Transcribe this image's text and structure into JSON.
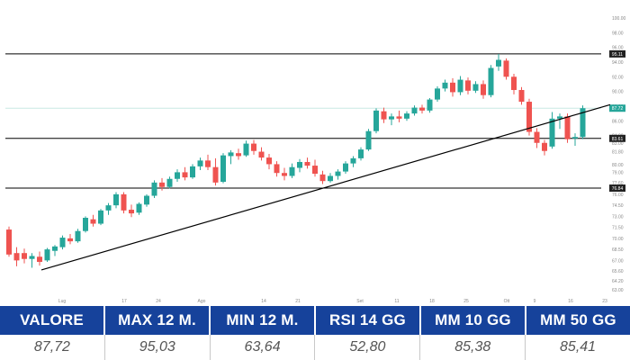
{
  "chart_data": {
    "type": "candlestick",
    "x_tick_labels": [
      "Lug",
      "17",
      "24",
      "Ago",
      "14",
      "21",
      "Set",
      "11",
      "18",
      "25",
      "Ott",
      "9",
      "16",
      "23"
    ],
    "y_tick_labels": [
      "63.00",
      "64.20",
      "65.60",
      "67.00",
      "68.50",
      "70.00",
      "71.50",
      "73.00",
      "74.50",
      "76.00",
      "77.60",
      "79.00",
      "80.00",
      "81.80",
      "83.00",
      "84.00",
      "86.00",
      "88.00",
      "90.00",
      "92.00",
      "94.00",
      "96.00",
      "98.00",
      "100.00"
    ],
    "ylim": [
      63,
      100
    ],
    "horizontal_levels": [
      {
        "label": "95.11",
        "value": 95.11
      },
      {
        "label": "87.72",
        "value": 87.72
      },
      {
        "label": "83.61",
        "value": 83.61
      },
      {
        "label": "76.84",
        "value": 76.84
      }
    ],
    "trendline": {
      "from": [
        0,
        65.7
      ],
      "to": [
        82,
        88.2
      ]
    },
    "candles": [
      {
        "t": 0,
        "o": 71.2,
        "h": 71.6,
        "l": 67.5,
        "c": 67.8
      },
      {
        "t": 1,
        "o": 68.0,
        "h": 68.8,
        "l": 66.2,
        "c": 67.0
      },
      {
        "t": 2,
        "o": 68.0,
        "h": 68.6,
        "l": 66.6,
        "c": 67.2
      },
      {
        "t": 3,
        "o": 67.2,
        "h": 68.0,
        "l": 66.0,
        "c": 67.6
      },
      {
        "t": 4,
        "o": 67.5,
        "h": 68.2,
        "l": 66.3,
        "c": 66.8
      },
      {
        "t": 5,
        "o": 67.0,
        "h": 68.7,
        "l": 66.8,
        "c": 68.5
      },
      {
        "t": 6,
        "o": 68.3,
        "h": 69.1,
        "l": 67.6,
        "c": 68.9
      },
      {
        "t": 7,
        "o": 68.8,
        "h": 70.4,
        "l": 68.5,
        "c": 70.1
      },
      {
        "t": 8,
        "o": 70.0,
        "h": 70.6,
        "l": 69.2,
        "c": 69.6
      },
      {
        "t": 9,
        "o": 69.6,
        "h": 71.3,
        "l": 69.4,
        "c": 71.0
      },
      {
        "t": 10,
        "o": 71.0,
        "h": 73.0,
        "l": 70.8,
        "c": 72.8
      },
      {
        "t": 11,
        "o": 72.6,
        "h": 73.2,
        "l": 71.6,
        "c": 72.0
      },
      {
        "t": 12,
        "o": 72.0,
        "h": 74.0,
        "l": 71.8,
        "c": 73.8
      },
      {
        "t": 13,
        "o": 73.8,
        "h": 74.8,
        "l": 73.2,
        "c": 74.5
      },
      {
        "t": 14,
        "o": 74.5,
        "h": 76.3,
        "l": 74.1,
        "c": 76.0
      },
      {
        "t": 15,
        "o": 76.0,
        "h": 76.3,
        "l": 73.4,
        "c": 73.8
      },
      {
        "t": 16,
        "o": 73.9,
        "h": 74.6,
        "l": 72.9,
        "c": 73.4
      },
      {
        "t": 17,
        "o": 73.5,
        "h": 74.9,
        "l": 73.2,
        "c": 74.7
      },
      {
        "t": 18,
        "o": 74.6,
        "h": 76.0,
        "l": 74.3,
        "c": 75.8
      },
      {
        "t": 19,
        "o": 75.8,
        "h": 77.9,
        "l": 75.5,
        "c": 77.6
      },
      {
        "t": 20,
        "o": 77.6,
        "h": 78.2,
        "l": 76.5,
        "c": 77.0
      },
      {
        "t": 21,
        "o": 77.0,
        "h": 78.4,
        "l": 76.8,
        "c": 78.1
      },
      {
        "t": 22,
        "o": 78.1,
        "h": 79.4,
        "l": 77.7,
        "c": 79.0
      },
      {
        "t": 23,
        "o": 79.0,
        "h": 79.7,
        "l": 77.9,
        "c": 78.3
      },
      {
        "t": 24,
        "o": 78.3,
        "h": 80.1,
        "l": 78.1,
        "c": 79.8
      },
      {
        "t": 25,
        "o": 79.8,
        "h": 81.0,
        "l": 79.3,
        "c": 80.6
      },
      {
        "t": 26,
        "o": 80.6,
        "h": 81.4,
        "l": 79.3,
        "c": 79.7
      },
      {
        "t": 27,
        "o": 79.7,
        "h": 80.9,
        "l": 77.2,
        "c": 77.6
      },
      {
        "t": 28,
        "o": 77.7,
        "h": 81.6,
        "l": 77.5,
        "c": 81.3
      },
      {
        "t": 29,
        "o": 81.2,
        "h": 82.0,
        "l": 80.1,
        "c": 81.7
      },
      {
        "t": 30,
        "o": 81.6,
        "h": 82.2,
        "l": 80.7,
        "c": 81.2
      },
      {
        "t": 31,
        "o": 81.3,
        "h": 83.3,
        "l": 81.1,
        "c": 82.9
      },
      {
        "t": 32,
        "o": 82.9,
        "h": 83.4,
        "l": 81.4,
        "c": 81.9
      },
      {
        "t": 33,
        "o": 81.8,
        "h": 82.4,
        "l": 80.6,
        "c": 81.0
      },
      {
        "t": 34,
        "o": 81.0,
        "h": 81.5,
        "l": 79.4,
        "c": 80.1
      },
      {
        "t": 35,
        "o": 80.1,
        "h": 80.5,
        "l": 78.4,
        "c": 78.9
      },
      {
        "t": 36,
        "o": 78.9,
        "h": 79.6,
        "l": 77.9,
        "c": 78.5
      },
      {
        "t": 37,
        "o": 78.5,
        "h": 80.2,
        "l": 78.2,
        "c": 79.7
      },
      {
        "t": 38,
        "o": 79.6,
        "h": 80.8,
        "l": 79.0,
        "c": 80.4
      },
      {
        "t": 39,
        "o": 80.4,
        "h": 81.0,
        "l": 79.5,
        "c": 79.9
      },
      {
        "t": 40,
        "o": 79.9,
        "h": 80.7,
        "l": 78.4,
        "c": 78.8
      },
      {
        "t": 41,
        "o": 78.7,
        "h": 79.2,
        "l": 77.4,
        "c": 77.8
      },
      {
        "t": 42,
        "o": 77.8,
        "h": 78.9,
        "l": 77.6,
        "c": 78.5
      },
      {
        "t": 43,
        "o": 78.5,
        "h": 79.4,
        "l": 78.0,
        "c": 79.1
      },
      {
        "t": 44,
        "o": 79.1,
        "h": 80.5,
        "l": 78.8,
        "c": 80.2
      },
      {
        "t": 45,
        "o": 80.2,
        "h": 81.2,
        "l": 79.7,
        "c": 80.9
      },
      {
        "t": 46,
        "o": 80.9,
        "h": 82.4,
        "l": 80.6,
        "c": 82.1
      },
      {
        "t": 47,
        "o": 82.1,
        "h": 84.9,
        "l": 81.9,
        "c": 84.6
      },
      {
        "t": 48,
        "o": 84.6,
        "h": 87.7,
        "l": 84.3,
        "c": 87.4
      },
      {
        "t": 49,
        "o": 87.3,
        "h": 87.8,
        "l": 85.7,
        "c": 86.2
      },
      {
        "t": 50,
        "o": 86.2,
        "h": 87.0,
        "l": 85.4,
        "c": 86.6
      },
      {
        "t": 51,
        "o": 86.6,
        "h": 87.4,
        "l": 85.8,
        "c": 86.3
      },
      {
        "t": 52,
        "o": 86.3,
        "h": 87.3,
        "l": 86.0,
        "c": 87.0
      },
      {
        "t": 53,
        "o": 87.0,
        "h": 88.1,
        "l": 86.7,
        "c": 87.8
      },
      {
        "t": 54,
        "o": 87.8,
        "h": 88.2,
        "l": 87.0,
        "c": 87.4
      },
      {
        "t": 55,
        "o": 87.4,
        "h": 89.1,
        "l": 87.1,
        "c": 88.9
      },
      {
        "t": 56,
        "o": 88.9,
        "h": 90.7,
        "l": 88.6,
        "c": 90.4
      },
      {
        "t": 57,
        "o": 90.4,
        "h": 91.6,
        "l": 90.0,
        "c": 91.2
      },
      {
        "t": 58,
        "o": 91.2,
        "h": 91.8,
        "l": 89.3,
        "c": 89.9
      },
      {
        "t": 59,
        "o": 89.9,
        "h": 92.1,
        "l": 89.5,
        "c": 91.6
      },
      {
        "t": 60,
        "o": 91.5,
        "h": 91.9,
        "l": 89.6,
        "c": 90.1
      },
      {
        "t": 61,
        "o": 90.1,
        "h": 91.4,
        "l": 89.8,
        "c": 91.0
      },
      {
        "t": 62,
        "o": 91.0,
        "h": 91.5,
        "l": 89.0,
        "c": 89.5
      },
      {
        "t": 63,
        "o": 89.5,
        "h": 93.6,
        "l": 89.2,
        "c": 93.2
      },
      {
        "t": 64,
        "o": 93.4,
        "h": 95.1,
        "l": 92.8,
        "c": 94.3
      },
      {
        "t": 65,
        "o": 94.2,
        "h": 94.5,
        "l": 91.6,
        "c": 92.0
      },
      {
        "t": 66,
        "o": 92.0,
        "h": 92.4,
        "l": 89.6,
        "c": 90.2
      },
      {
        "t": 67,
        "o": 90.2,
        "h": 90.6,
        "l": 88.2,
        "c": 88.6
      },
      {
        "t": 68,
        "o": 88.6,
        "h": 89.0,
        "l": 84.0,
        "c": 84.5
      },
      {
        "t": 69,
        "o": 84.5,
        "h": 85.0,
        "l": 82.3,
        "c": 83.0
      },
      {
        "t": 70,
        "o": 83.0,
        "h": 83.4,
        "l": 81.3,
        "c": 81.9
      },
      {
        "t": 71,
        "o": 82.5,
        "h": 87.2,
        "l": 82.2,
        "c": 86.3
      },
      {
        "t": 72,
        "o": 86.3,
        "h": 87.0,
        "l": 84.9,
        "c": 86.6
      },
      {
        "t": 73,
        "o": 86.6,
        "h": 87.0,
        "l": 83.0,
        "c": 83.5
      },
      {
        "t": 74,
        "o": 83.6,
        "h": 84.3,
        "l": 82.6,
        "c": 83.8
      },
      {
        "t": 75,
        "o": 83.8,
        "h": 88.1,
        "l": 83.5,
        "c": 87.72
      }
    ]
  },
  "stats_table": {
    "headers": [
      "VALORE",
      "MAX 12 M.",
      "MIN 12 M.",
      "RSI 14 GG",
      "MM 10 GG",
      "MM 50 GG"
    ],
    "values": [
      "87,72",
      "95,03",
      "63,64",
      "52,80",
      "85,38",
      "85,41"
    ]
  },
  "colors": {
    "up": "#26a69a",
    "down": "#ef5350",
    "header_bg": "#16429b",
    "header_text": "#ffffff",
    "level_line": "#000000",
    "trend_line": "#000000",
    "grid": "#f0f0f0"
  }
}
